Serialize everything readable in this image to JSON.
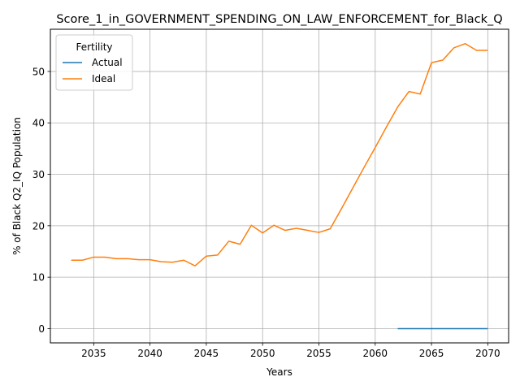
{
  "chart_data": {
    "type": "line",
    "title": "Score_1_in_GOVERNMENT_SPENDING_ON_LAW_ENFORCEMENT_for_Black_Q",
    "xlabel": "Years",
    "ylabel": "% of Black Q2_IQ Population",
    "xlim": [
      2031.15,
      2071.85
    ],
    "ylim": [
      -2.77,
      58.2
    ],
    "xticks": [
      2035,
      2040,
      2045,
      2050,
      2055,
      2060,
      2065,
      2070
    ],
    "yticks": [
      0,
      10,
      20,
      30,
      40,
      50
    ],
    "grid": true,
    "legend": {
      "title": "Fertility",
      "placement": "top-left"
    },
    "series": [
      {
        "name": "Actual",
        "color": "#1f77b4",
        "x": [
          2062,
          2063,
          2064,
          2065,
          2066,
          2067,
          2068,
          2069,
          2070
        ],
        "y": [
          0,
          0,
          0,
          0,
          0,
          0,
          0,
          0,
          0
        ]
      },
      {
        "name": "Ideal",
        "color": "#ff7f0e",
        "x": [
          2033,
          2034,
          2035,
          2036,
          2037,
          2038,
          2039,
          2040,
          2041,
          2042,
          2043,
          2044,
          2045,
          2046,
          2047,
          2048,
          2049,
          2050,
          2051,
          2052,
          2053,
          2054,
          2055,
          2056,
          2057,
          2058,
          2059,
          2060,
          2061,
          2062,
          2063,
          2064,
          2065,
          2066,
          2067,
          2068,
          2069,
          2070
        ],
        "y": [
          13.3,
          13.3,
          13.9,
          13.9,
          13.6,
          13.6,
          13.4,
          13.4,
          13.0,
          12.9,
          13.3,
          12.2,
          14.1,
          14.3,
          17.0,
          16.4,
          20.1,
          18.6,
          20.1,
          19.1,
          19.5,
          19.1,
          18.7,
          19.4,
          23.3,
          27.3,
          31.3,
          35.2,
          39.2,
          43.1,
          46.1,
          45.6,
          51.7,
          52.2,
          54.6,
          55.4,
          54.1,
          54.1
        ]
      }
    ]
  }
}
